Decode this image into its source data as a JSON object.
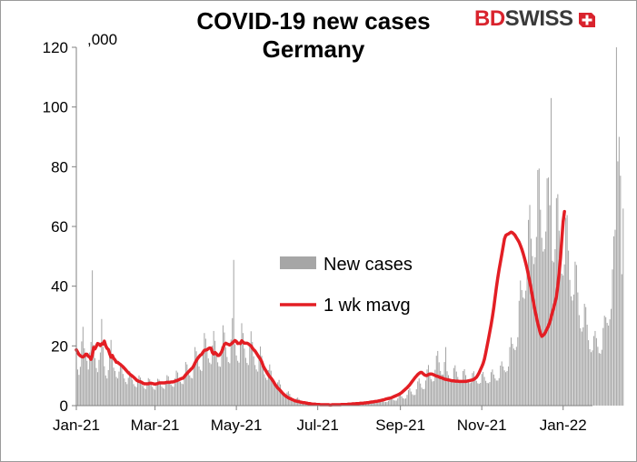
{
  "title": "COVID-19  new cases\nGermany",
  "units_label": ",000",
  "logo": {
    "text_a": "BD",
    "text_b": "SWISS",
    "mark_icon": "bdswiss-cross-mark",
    "accent": "#d9232d"
  },
  "chart_data": {
    "type": "bar",
    "title": "COVID-19  new cases Germany",
    "xlabel": "",
    "ylabel": ",000",
    "ylim": [
      0,
      120
    ],
    "yticks": [
      0,
      20,
      40,
      60,
      80,
      100,
      120
    ],
    "xlim": [
      "2021-01-01",
      "2022-01-23"
    ],
    "xticks": [
      {
        "date": "2021-01-01",
        "label": "Jan-21"
      },
      {
        "date": "2021-03-01",
        "label": "Mar-21"
      },
      {
        "date": "2021-05-01",
        "label": "May-21"
      },
      {
        "date": "2021-07-01",
        "label": "Jul-21"
      },
      {
        "date": "2021-09-01",
        "label": "Sep-21"
      },
      {
        "date": "2021-11-01",
        "label": "Nov-21"
      },
      {
        "date": "2022-01-01",
        "label": "Jan-22"
      }
    ],
    "grid": false,
    "legend": "center",
    "series": [
      {
        "name": "New cases",
        "type": "bar",
        "color": "#a6a6a6",
        "start_date": "2021-01-01",
        "values": [
          14.4,
          12.1,
          10.3,
          13.0,
          21.5,
          26.4,
          19.2,
          17.1,
          15.0,
          12.1,
          17.8,
          21.3,
          45.3,
          20.4,
          15.9,
          12.6,
          11.2,
          15.3,
          17.8,
          29.0,
          19.7,
          13.2,
          10.1,
          9.1,
          11.9,
          18.7,
          22.0,
          16.9,
          12.7,
          11.6,
          9.6,
          9.1,
          11.4,
          14.1,
          13.5,
          10.6,
          9.1,
          7.9,
          7.2,
          9.3,
          11.6,
          10.4,
          8.7,
          7.2,
          6.5,
          6.2,
          8.2,
          10.1,
          9.4,
          7.5,
          6.6,
          5.8,
          5.5,
          7.5,
          9.2,
          8.8,
          7.1,
          6.3,
          5.6,
          5.3,
          7.3,
          9.0,
          8.7,
          7.2,
          6.4,
          5.9,
          5.6,
          7.9,
          10.2,
          9.8,
          8.1,
          7.1,
          6.5,
          6.3,
          9.1,
          11.7,
          11.1,
          9.1,
          8.0,
          7.4,
          7.2,
          10.5,
          14.6,
          13.8,
          11.4,
          10.1,
          9.3,
          9.1,
          13.8,
          19.6,
          18.2,
          15.1,
          13.1,
          12.0,
          11.6,
          17.4,
          24.3,
          22.4,
          18.3,
          15.8,
          14.4,
          13.9,
          20.1,
          25.0,
          21.7,
          17.1,
          14.5,
          13.2,
          13.0,
          19.8,
          26.9,
          24.5,
          19.5,
          16.3,
          14.6,
          14.2,
          22.1,
          29.3,
          48.8,
          20.6,
          16.8,
          15.0,
          14.4,
          21.6,
          27.6,
          24.3,
          19.1,
          16.0,
          14.3,
          13.6,
          20.0,
          24.9,
          21.3,
          16.5,
          13.6,
          12.1,
          11.4,
          16.3,
          19.8,
          16.7,
          12.8,
          10.5,
          9.3,
          8.6,
          11.9,
          13.8,
          11.7,
          8.8,
          7.3,
          6.4,
          5.8,
          7.8,
          8.6,
          7.1,
          5.2,
          4.3,
          3.7,
          3.3,
          4.4,
          4.8,
          3.9,
          2.9,
          2.4,
          2.1,
          1.9,
          2.5,
          2.7,
          2.2,
          1.6,
          1.3,
          1.2,
          1.0,
          1.3,
          1.4,
          1.1,
          0.8,
          0.6,
          0.6,
          0.5,
          0.6,
          0.7,
          0.6,
          0.4,
          0.3,
          0.3,
          0.3,
          0.4,
          0.4,
          0.3,
          0.2,
          0.2,
          0.2,
          0.2,
          0.3,
          0.3,
          0.3,
          0.3,
          0.2,
          0.3,
          0.3,
          0.4,
          0.5,
          0.4,
          0.4,
          0.3,
          0.4,
          0.4,
          0.6,
          0.7,
          0.6,
          0.5,
          0.5,
          0.5,
          0.6,
          0.9,
          1.0,
          0.8,
          0.7,
          0.7,
          0.7,
          0.9,
          1.2,
          1.3,
          1.1,
          0.9,
          0.9,
          0.9,
          1.2,
          1.6,
          1.8,
          1.5,
          1.2,
          1.2,
          1.2,
          1.6,
          2.3,
          2.6,
          2.1,
          1.8,
          1.7,
          1.7,
          2.4,
          3.4,
          3.8,
          3.1,
          2.5,
          2.3,
          2.4,
          3.6,
          5.2,
          5.8,
          4.7,
          3.8,
          3.5,
          3.6,
          5.5,
          8.1,
          9.1,
          7.4,
          6.0,
          5.5,
          5.6,
          8.4,
          12.1,
          13.6,
          11.0,
          8.9,
          8.1,
          8.2,
          12.0,
          16.7,
          18.3,
          14.5,
          11.6,
          10.4,
          10.4,
          14.6,
          19.6,
          11.5,
          10.2,
          9.0,
          8.5,
          8.8,
          12.6,
          13.5,
          11.4,
          9.6,
          8.5,
          8.0,
          8.3,
          11.6,
          12.2,
          10.2,
          8.7,
          7.8,
          7.5,
          7.8,
          10.9,
          11.5,
          9.7,
          8.3,
          7.5,
          7.3,
          7.6,
          10.6,
          11.3,
          9.6,
          8.3,
          7.6,
          7.5,
          7.9,
          11.2,
          12.1,
          10.4,
          9.1,
          8.4,
          8.4,
          9.2,
          13.4,
          14.8,
          13.1,
          11.8,
          11.2,
          11.6,
          13.1,
          19.6,
          22.8,
          20.7,
          19.1,
          18.6,
          19.7,
          22.9,
          35.1,
          41.9,
          38.7,
          36.2,
          35.8,
          38.5,
          45.1,
          62.2,
          67.2,
          55.9,
          50.1,
          47.4,
          49.7,
          56.5,
          78.9,
          79.4,
          65.6,
          56.2,
          51.6,
          52.4,
          58.3,
          76.1,
          76.4,
          67.1,
          103.0,
          48.5,
          48.0,
          52.4,
          69.5,
          70.8,
          58.6,
          49.2,
          44.2,
          43.6,
          47.3,
          62.9,
          63.8,
          51.9,
          42.1,
          36.6,
          35.2,
          37.2,
          48.2,
          47.1,
          37.9,
          30.3,
          25.9,
          24.8,
          26.2,
          34.1,
          33.0,
          27.1,
          21.9,
          18.9,
          17.9,
          18.5,
          23.3,
          25.0,
          22.6,
          19.7,
          17.6,
          17.4,
          18.7,
          26.0,
          30.1,
          29.6,
          27.7,
          26.8,
          28.9,
          32.4,
          45.6,
          56.7,
          58.9,
          120.0,
          81.8,
          90.0,
          77.0,
          44.0,
          66.0
        ]
      },
      {
        "name": "1 wk mavg",
        "type": "line",
        "color": "#e31e24",
        "start_date": "2021-01-01",
        "values": [
          18.7,
          17.9,
          17.1,
          16.7,
          16.4,
          16.3,
          16.6,
          17.2,
          17.2,
          16.5,
          16.3,
          15.5,
          16.9,
          19.5,
          19.0,
          19.9,
          20.8,
          20.6,
          20.1,
          20.7,
          20.6,
          21.6,
          20.1,
          19.2,
          18.8,
          17.4,
          16.2,
          16.8,
          15.8,
          15.3,
          14.5,
          14.5,
          14.1,
          13.8,
          13.4,
          13.0,
          12.5,
          12.0,
          11.5,
          11.0,
          10.6,
          10.2,
          9.9,
          9.5,
          9.1,
          8.6,
          8.3,
          8.1,
          8.0,
          7.8,
          7.5,
          7.3,
          7.3,
          7.3,
          7.3,
          7.5,
          7.5,
          7.4,
          7.3,
          7.2,
          7.3,
          7.4,
          7.6,
          7.6,
          7.6,
          7.6,
          7.6,
          7.7,
          7.8,
          7.8,
          7.8,
          7.9,
          7.9,
          8.0,
          8.2,
          8.3,
          8.5,
          8.7,
          8.9,
          9.1,
          9.2,
          9.7,
          10.3,
          10.8,
          11.3,
          11.7,
          12.2,
          12.6,
          13.3,
          14.3,
          15.1,
          15.8,
          16.4,
          16.9,
          17.2,
          17.9,
          18.5,
          18.6,
          18.7,
          19.1,
          19.3,
          19.2,
          17.8,
          17.3,
          17.8,
          17.4,
          16.8,
          16.8,
          17.3,
          18.1,
          19.3,
          20.5,
          20.9,
          20.7,
          20.5,
          20.3,
          20.6,
          21.0,
          21.4,
          21.8,
          21.5,
          20.8,
          20.9,
          20.8,
          21.7,
          21.3,
          20.9,
          20.9,
          20.9,
          20.7,
          20.3,
          20.0,
          19.3,
          18.7,
          18.3,
          17.6,
          16.9,
          16.2,
          15.6,
          14.7,
          13.4,
          12.5,
          11.8,
          11.0,
          10.3,
          9.7,
          9.2,
          8.6,
          7.9,
          7.1,
          6.5,
          5.9,
          5.5,
          5.0,
          4.5,
          4.0,
          3.6,
          3.2,
          2.9,
          2.6,
          2.4,
          2.2,
          2.0,
          1.8,
          1.6,
          1.5,
          1.4,
          1.3,
          1.2,
          1.1,
          1.0,
          1.0,
          0.9,
          0.8,
          0.7,
          0.7,
          0.6,
          0.5,
          0.5,
          0.5,
          0.4,
          0.4,
          0.4,
          0.3,
          0.3,
          0.3,
          0.3,
          0.3,
          0.3,
          0.3,
          0.2,
          0.2,
          0.3,
          0.3,
          0.3,
          0.3,
          0.3,
          0.3,
          0.3,
          0.4,
          0.4,
          0.4,
          0.4,
          0.4,
          0.5,
          0.5,
          0.5,
          0.6,
          0.6,
          0.6,
          0.7,
          0.7,
          0.7,
          0.8,
          0.8,
          0.8,
          0.9,
          0.9,
          1.0,
          1.0,
          1.1,
          1.2,
          1.2,
          1.3,
          1.4,
          1.4,
          1.5,
          1.6,
          1.7,
          1.8,
          1.9,
          2.0,
          2.2,
          2.3,
          2.4,
          2.5,
          2.6,
          2.8,
          3.0,
          3.2,
          3.4,
          3.6,
          3.8,
          4.1,
          4.4,
          4.8,
          5.2,
          5.6,
          6.0,
          6.5,
          7.0,
          7.6,
          8.2,
          8.8,
          9.4,
          9.9,
          10.4,
          10.8,
          11.1,
          11.1,
          10.7,
          10.3,
          10.1,
          10.1,
          10.4,
          10.6,
          10.6,
          10.5,
          10.3,
          10.1,
          9.9,
          9.8,
          9.6,
          9.4,
          9.3,
          9.1,
          8.9,
          8.8,
          8.7,
          8.6,
          8.5,
          8.4,
          8.3,
          8.3,
          8.2,
          8.2,
          8.2,
          8.1,
          8.1,
          8.1,
          8.1,
          8.1,
          8.1,
          8.2,
          8.3,
          8.4,
          8.5,
          8.6,
          8.8,
          9.1,
          9.5,
          10.2,
          11.0,
          12.0,
          13.0,
          14.1,
          15.6,
          17.7,
          20.0,
          22.3,
          24.7,
          27.1,
          29.8,
          32.8,
          36.3,
          39.7,
          42.8,
          45.6,
          48.1,
          50.6,
          53.2,
          55.8,
          57.0,
          57.3,
          57.5,
          57.8,
          58.1,
          57.9,
          57.5,
          57.0,
          56.2,
          55.5,
          54.7,
          53.6,
          52.4,
          51.0,
          49.4,
          47.7,
          45.8,
          43.7,
          41.5,
          39.1,
          36.6,
          34.1,
          31.7,
          29.6,
          27.6,
          25.8,
          24.2,
          23.2,
          23.5,
          24.0,
          24.8,
          25.8,
          26.7,
          27.9,
          29.6,
          31.3,
          32.9,
          34.6,
          36.6,
          40.0,
          44.5,
          49.3,
          55.6,
          61.6,
          65.0
        ]
      }
    ]
  }
}
